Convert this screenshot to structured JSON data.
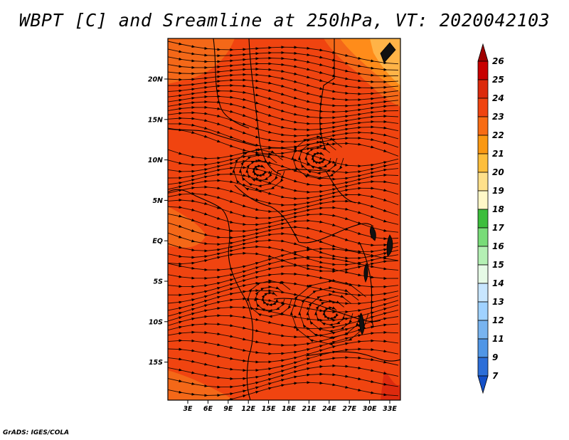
{
  "title": "WBPT [C] and Sreamline at 250hPa, VT: 2020042103",
  "credit": "GrADS: IGES/COLA",
  "map": {
    "lat_labels": [
      "20N",
      "15N",
      "10N",
      "5N",
      "EQ",
      "5S",
      "10S",
      "15S"
    ],
    "lon_labels": [
      "3E",
      "6E",
      "9E",
      "12E",
      "15E",
      "18E",
      "21E",
      "24E",
      "27E",
      "30E",
      "33E"
    ],
    "base_color": "#f04410",
    "colors": {
      "orange_light": "#f46818",
      "orange": "#ff8c1a",
      "yellow_orange": "#ffb347",
      "red": "#dd2a0e"
    }
  },
  "colorbar": {
    "labels": [
      "26",
      "25",
      "24",
      "23",
      "22",
      "21",
      "20",
      "19",
      "18",
      "17",
      "16",
      "15",
      "14",
      "13",
      "12",
      "11",
      "9",
      "7"
    ],
    "colors": [
      "#a00000",
      "#c80000",
      "#dc2a0c",
      "#f04410",
      "#f86c14",
      "#fa9812",
      "#fdbe3c",
      "#ffe08a",
      "#fff8c8",
      "#3cbe3c",
      "#78dc78",
      "#b4f0b4",
      "#e6fae6",
      "#c8e6ff",
      "#a0d2ff",
      "#78b4f0",
      "#5096e6",
      "#2c6ed8",
      "#1450c8"
    ]
  }
}
